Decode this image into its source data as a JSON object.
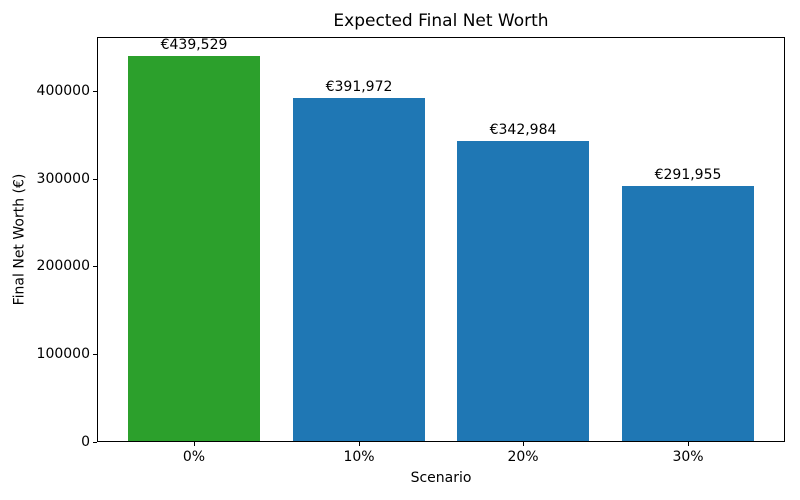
{
  "chart_data": {
    "type": "bar",
    "title": "Expected Final Net Worth",
    "xlabel": "Scenario",
    "ylabel": "Final Net Worth (€)",
    "categories": [
      "0%",
      "10%",
      "20%",
      "30%"
    ],
    "values": [
      439529,
      391972,
      342984,
      291955
    ],
    "bar_labels": [
      "€439,529",
      "€391,972",
      "€342,984",
      "€291,955"
    ],
    "bar_colors": [
      "#2ca02c",
      "#1f77b4",
      "#1f77b4",
      "#1f77b4"
    ],
    "yticks": [
      0,
      100000,
      200000,
      300000,
      400000
    ],
    "ytick_labels": [
      "0",
      "100000",
      "200000",
      "300000",
      "400000"
    ],
    "ylim": [
      0,
      461505
    ],
    "grid": false,
    "legend_position": "none",
    "background_color": "#ffffff",
    "text_color": "#000000"
  }
}
